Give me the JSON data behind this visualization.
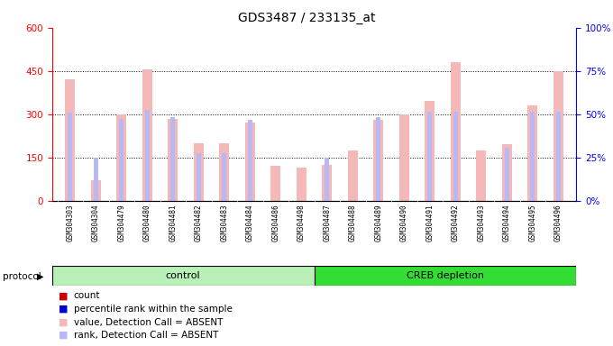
{
  "title": "GDS3487 / 233135_at",
  "samples": [
    "GSM304303",
    "GSM304304",
    "GSM304479",
    "GSM304480",
    "GSM304481",
    "GSM304482",
    "GSM304483",
    "GSM304484",
    "GSM304486",
    "GSM304498",
    "GSM304487",
    "GSM304488",
    "GSM304489",
    "GSM304490",
    "GSM304491",
    "GSM304492",
    "GSM304493",
    "GSM304494",
    "GSM304495",
    "GSM304496"
  ],
  "count_values": [
    420,
    70,
    300,
    455,
    285,
    200,
    200,
    270,
    120,
    115,
    125,
    175,
    280,
    300,
    345,
    480,
    175,
    195,
    330,
    450
  ],
  "rank_values": [
    305,
    148,
    285,
    315,
    290,
    165,
    165,
    280,
    null,
    null,
    150,
    null,
    290,
    null,
    310,
    310,
    null,
    185,
    310,
    310
  ],
  "control_count": 10,
  "ylim_left": [
    0,
    600
  ],
  "ylim_right": [
    0,
    100
  ],
  "yticks_left": [
    0,
    150,
    300,
    450,
    600
  ],
  "yticks_right": [
    0,
    25,
    50,
    75,
    100
  ],
  "yticklabels_right": [
    "0%",
    "25%",
    "50%",
    "75%",
    "100%"
  ],
  "grid_values": [
    150,
    300,
    450
  ],
  "bar_color_count": "#f5b8b8",
  "bar_color_rank": "#b8b8f5",
  "legend_color_count_solid": "#cc0000",
  "legend_color_rank_solid": "#0000cc",
  "control_label": "control",
  "treatment_label": "CREB depletion",
  "protocol_label": "protocol",
  "control_bg": "#b8f0b8",
  "treatment_bg": "#33dd33",
  "xticklabel_bg": "#d8d8d8",
  "rank_scale_factor": 6.0
}
